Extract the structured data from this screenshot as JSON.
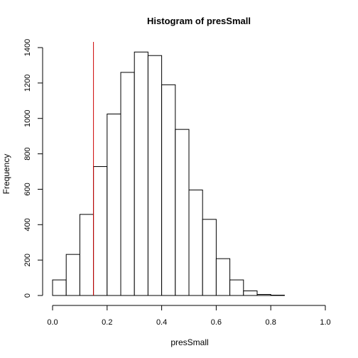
{
  "chart_data": {
    "type": "bar",
    "subtype": "histogram",
    "title": "Histogram of presSmall",
    "xlabel": "presSmall",
    "ylabel": "Frequency",
    "xlim": [
      0,
      1
    ],
    "ylim": [
      0,
      1400
    ],
    "x_ticks": [
      "0.0",
      "0.2",
      "0.4",
      "0.6",
      "0.8",
      "1.0"
    ],
    "y_ticks": [
      "0",
      "200",
      "400",
      "600",
      "800",
      "1000",
      "1200",
      "1400"
    ],
    "bin_width": 0.05,
    "bins": [
      {
        "x0": 0.0,
        "x1": 0.05,
        "count": 88
      },
      {
        "x0": 0.05,
        "x1": 0.1,
        "count": 232
      },
      {
        "x0": 0.1,
        "x1": 0.15,
        "count": 458
      },
      {
        "x0": 0.15,
        "x1": 0.2,
        "count": 728
      },
      {
        "x0": 0.2,
        "x1": 0.25,
        "count": 1025
      },
      {
        "x0": 0.25,
        "x1": 0.3,
        "count": 1260
      },
      {
        "x0": 0.3,
        "x1": 0.35,
        "count": 1375
      },
      {
        "x0": 0.35,
        "x1": 0.4,
        "count": 1355
      },
      {
        "x0": 0.4,
        "x1": 0.45,
        "count": 1190
      },
      {
        "x0": 0.45,
        "x1": 0.5,
        "count": 938
      },
      {
        "x0": 0.5,
        "x1": 0.55,
        "count": 596
      },
      {
        "x0": 0.55,
        "x1": 0.6,
        "count": 430
      },
      {
        "x0": 0.6,
        "x1": 0.65,
        "count": 208
      },
      {
        "x0": 0.65,
        "x1": 0.7,
        "count": 88
      },
      {
        "x0": 0.7,
        "x1": 0.75,
        "count": 26
      },
      {
        "x0": 0.75,
        "x1": 0.8,
        "count": 6
      },
      {
        "x0": 0.8,
        "x1": 0.85,
        "count": 2
      }
    ],
    "reference_line": {
      "x": 0.15,
      "color": "#cc0000"
    },
    "grid": false,
    "legend": "none"
  }
}
